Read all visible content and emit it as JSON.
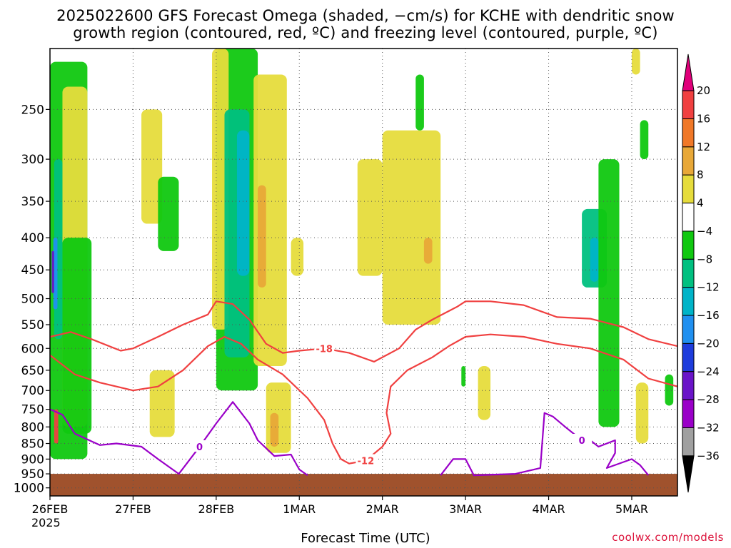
{
  "title_line1": "2025022600 GFS Forecast Omega (shaded, −cm/s) for KCHE with dendritic snow",
  "title_line2": "growth region (contoured, red, ºC) and freezing level (contoured, purple, ºC)",
  "x_axis_label": "Forecast Time (UTC)",
  "credit": "coolwx.com/models",
  "year_label": "2025",
  "colors": {
    "dgz_contour": "#f04040",
    "freezing_contour": "#9a00c8",
    "ground": "#a0522d",
    "grid": "#555555"
  },
  "chart_data": {
    "type": "heatmap",
    "title": "2025022600 GFS Forecast Omega (shaded, −cm/s) for KCHE with dendritic snow growth region (contoured, red, ºC) and freezing level (contoured, purple, ºC)",
    "xlabel": "Forecast Time (UTC)",
    "ylabel": "",
    "x_ticks": [
      "26FEB",
      "27FEB",
      "28FEB",
      "1MAR",
      "2MAR",
      "3MAR",
      "4MAR",
      "5MAR"
    ],
    "x_range_days": [
      0,
      7.55
    ],
    "y_ticks": [
      250,
      300,
      350,
      400,
      450,
      500,
      550,
      600,
      650,
      700,
      750,
      800,
      850,
      900,
      950,
      1000
    ],
    "y_range_hpa": [
      200,
      1030
    ],
    "y_scale": "log-pressure",
    "grid": true,
    "colorbar": {
      "labels": [
        "20",
        "16",
        "12",
        "8",
        "4",
        "−4",
        "−8",
        "−12",
        "−16",
        "−20",
        "−24",
        "−28",
        "−32",
        "−36"
      ],
      "bins": [
        {
          "label": ">20",
          "color": "#e0007a"
        },
        {
          "label": "16 to 20",
          "color": "#f04040"
        },
        {
          "label": "12 to 16",
          "color": "#f07828"
        },
        {
          "label": "8 to 12",
          "color": "#e8a838"
        },
        {
          "label": "4 to 8",
          "color": "#e6dc3c"
        },
        {
          "label": "-4 to 4",
          "color": "#ffffff"
        },
        {
          "label": "-8 to -4",
          "color": "#10c810"
        },
        {
          "label": "-12 to -8",
          "color": "#00c080"
        },
        {
          "label": "-16 to -12",
          "color": "#00b4c8"
        },
        {
          "label": "-20 to -16",
          "color": "#2090f0"
        },
        {
          "label": "-24 to -20",
          "color": "#1e3cdc"
        },
        {
          "label": "-28 to -24",
          "color": "#6a14c8"
        },
        {
          "label": "-32 to -28",
          "color": "#9a00c8"
        },
        {
          "label": "-36 to -32",
          "color": "#a0a0a0"
        },
        {
          "label": "<-36",
          "color": "#000000"
        }
      ]
    },
    "contours": [
      {
        "label": "-18",
        "color": "#f04040",
        "points": [
          [
            0,
            575
          ],
          [
            0.25,
            565
          ],
          [
            0.5,
            580
          ],
          [
            0.85,
            605
          ],
          [
            1.0,
            600
          ],
          [
            1.3,
            575
          ],
          [
            1.6,
            550
          ],
          [
            1.9,
            530
          ],
          [
            2.0,
            505
          ],
          [
            2.2,
            510
          ],
          [
            2.4,
            540
          ],
          [
            2.6,
            590
          ],
          [
            2.8,
            610
          ],
          [
            3.0,
            605
          ],
          [
            3.3,
            600
          ],
          [
            3.6,
            610
          ],
          [
            3.9,
            630
          ],
          [
            4.2,
            600
          ],
          [
            4.4,
            560
          ],
          [
            4.6,
            540
          ],
          [
            4.9,
            515
          ],
          [
            5.0,
            505
          ],
          [
            5.3,
            505
          ],
          [
            5.7,
            512
          ],
          [
            6.1,
            535
          ],
          [
            6.5,
            538
          ],
          [
            6.9,
            555
          ],
          [
            7.2,
            580
          ],
          [
            7.55,
            595
          ]
        ]
      },
      {
        "label": "-12",
        "color": "#f04040",
        "points": [
          [
            0,
            615
          ],
          [
            0.3,
            660
          ],
          [
            0.6,
            680
          ],
          [
            1.0,
            700
          ],
          [
            1.3,
            690
          ],
          [
            1.6,
            650
          ],
          [
            1.9,
            595
          ],
          [
            2.1,
            575
          ],
          [
            2.3,
            590
          ],
          [
            2.5,
            625
          ],
          [
            2.8,
            660
          ],
          [
            3.1,
            720
          ],
          [
            3.3,
            780
          ],
          [
            3.4,
            850
          ],
          [
            3.5,
            900
          ],
          [
            3.6,
            915
          ],
          [
            3.8,
            905
          ],
          [
            4.0,
            860
          ],
          [
            4.1,
            820
          ],
          [
            4.05,
            760
          ],
          [
            4.1,
            690
          ],
          [
            4.3,
            650
          ],
          [
            4.6,
            620
          ],
          [
            4.8,
            595
          ],
          [
            5.0,
            575
          ],
          [
            5.3,
            570
          ],
          [
            5.7,
            575
          ],
          [
            6.1,
            590
          ],
          [
            6.5,
            600
          ],
          [
            6.9,
            625
          ],
          [
            7.2,
            670
          ],
          [
            7.55,
            690
          ]
        ]
      },
      {
        "label": "0",
        "color": "#9a00c8",
        "points": [
          [
            0,
            750
          ],
          [
            0.15,
            765
          ],
          [
            0.3,
            820
          ],
          [
            0.6,
            855
          ],
          [
            0.8,
            850
          ],
          [
            1.1,
            860
          ],
          [
            1.3,
            900
          ],
          [
            1.55,
            950
          ],
          [
            1.8,
            860
          ],
          [
            2.0,
            790
          ],
          [
            2.2,
            730
          ],
          [
            2.4,
            790
          ],
          [
            2.5,
            840
          ],
          [
            2.7,
            890
          ],
          [
            2.9,
            885
          ],
          [
            3.0,
            935
          ],
          [
            3.1,
            955
          ]
        ]
      },
      {
        "label": "0",
        "color": "#9a00c8",
        "points": [
          [
            4.7,
            955
          ],
          [
            4.85,
            900
          ],
          [
            5.0,
            900
          ],
          [
            5.1,
            955
          ],
          [
            5.6,
            950
          ],
          [
            5.9,
            930
          ],
          [
            5.95,
            760
          ],
          [
            6.05,
            770
          ],
          [
            6.2,
            800
          ],
          [
            6.4,
            840
          ],
          [
            6.5,
            840
          ],
          [
            6.6,
            860
          ],
          [
            6.8,
            840
          ],
          [
            6.8,
            880
          ],
          [
            6.7,
            930
          ],
          [
            7.0,
            900
          ],
          [
            7.1,
            920
          ],
          [
            7.2,
            955
          ]
        ]
      }
    ],
    "ground": {
      "from_hpa": 950,
      "to_hpa": 1030,
      "color": "#a0522d"
    },
    "omega_regions": [
      {
        "bin": "-8 to -4",
        "x": [
          0.0,
          0.45
        ],
        "p": [
          210,
          900
        ]
      },
      {
        "bin": "4 to 8",
        "x": [
          0.15,
          0.45
        ],
        "p": [
          230,
          800
        ]
      },
      {
        "bin": "-8 to -4",
        "x": [
          0.15,
          0.5
        ],
        "p": [
          400,
          820
        ]
      },
      {
        "bin": "-12 to -8",
        "x": [
          0.05,
          0.15
        ],
        "p": [
          300,
          580
        ]
      },
      {
        "bin": "-20 to -16",
        "x": [
          0.04,
          0.09
        ],
        "p": [
          400,
          520
        ]
      },
      {
        "bin": "-28 to -24",
        "x": [
          0.02,
          0.05
        ],
        "p": [
          420,
          490
        ]
      },
      {
        "bin": "16 to 20",
        "x": [
          0.05,
          0.1
        ],
        "p": [
          750,
          850
        ]
      },
      {
        "bin": "4 to 8",
        "x": [
          1.1,
          1.35
        ],
        "p": [
          250,
          380
        ]
      },
      {
        "bin": "4 to 8",
        "x": [
          1.2,
          1.5
        ],
        "p": [
          650,
          830
        ]
      },
      {
        "bin": "-8 to -4",
        "x": [
          1.3,
          1.55
        ],
        "p": [
          320,
          420
        ]
      },
      {
        "bin": "-8 to -4",
        "x": [
          2.0,
          2.5
        ],
        "p": [
          200,
          700
        ]
      },
      {
        "bin": "4 to 8",
        "x": [
          1.95,
          2.15
        ],
        "p": [
          200,
          560
        ]
      },
      {
        "bin": "-12 to -8",
        "x": [
          2.1,
          2.4
        ],
        "p": [
          250,
          620
        ]
      },
      {
        "bin": "-16 to -12",
        "x": [
          2.25,
          2.4
        ],
        "p": [
          270,
          460
        ]
      },
      {
        "bin": "4 to 8",
        "x": [
          2.45,
          2.85
        ],
        "p": [
          220,
          640
        ]
      },
      {
        "bin": "8 to 12",
        "x": [
          2.5,
          2.6
        ],
        "p": [
          330,
          480
        ]
      },
      {
        "bin": "4 to 8",
        "x": [
          2.6,
          2.9
        ],
        "p": [
          680,
          880
        ]
      },
      {
        "bin": "8 to 12",
        "x": [
          2.65,
          2.75
        ],
        "p": [
          760,
          860
        ]
      },
      {
        "bin": "4 to 8",
        "x": [
          2.9,
          3.05
        ],
        "p": [
          400,
          460
        ]
      },
      {
        "bin": "4 to 8",
        "x": [
          3.7,
          4.0
        ],
        "p": [
          300,
          460
        ]
      },
      {
        "bin": "4 to 8",
        "x": [
          4.0,
          4.7
        ],
        "p": [
          270,
          550
        ]
      },
      {
        "bin": "8 to 12",
        "x": [
          4.5,
          4.6
        ],
        "p": [
          400,
          440
        ]
      },
      {
        "bin": "-8 to -4",
        "x": [
          4.4,
          4.5
        ],
        "p": [
          220,
          270
        ]
      },
      {
        "bin": "-8 to -4",
        "x": [
          4.95,
          5.0
        ],
        "p": [
          640,
          690
        ]
      },
      {
        "bin": "4 to 8",
        "x": [
          5.15,
          5.3
        ],
        "p": [
          640,
          780
        ]
      },
      {
        "bin": "-12 to -8",
        "x": [
          6.4,
          6.7
        ],
        "p": [
          360,
          480
        ]
      },
      {
        "bin": "-16 to -12",
        "x": [
          6.5,
          6.6
        ],
        "p": [
          400,
          470
        ]
      },
      {
        "bin": "-8 to -4",
        "x": [
          6.6,
          6.85
        ],
        "p": [
          300,
          800
        ]
      },
      {
        "bin": "-8 to -4",
        "x": [
          7.1,
          7.2
        ],
        "p": [
          260,
          300
        ]
      },
      {
        "bin": "-8 to -4",
        "x": [
          7.4,
          7.5
        ],
        "p": [
          660,
          740
        ]
      },
      {
        "bin": "4 to 8",
        "x": [
          7.05,
          7.2
        ],
        "p": [
          680,
          850
        ]
      },
      {
        "bin": "4 to 8",
        "x": [
          7.0,
          7.1
        ],
        "p": [
          200,
          220
        ]
      }
    ]
  }
}
